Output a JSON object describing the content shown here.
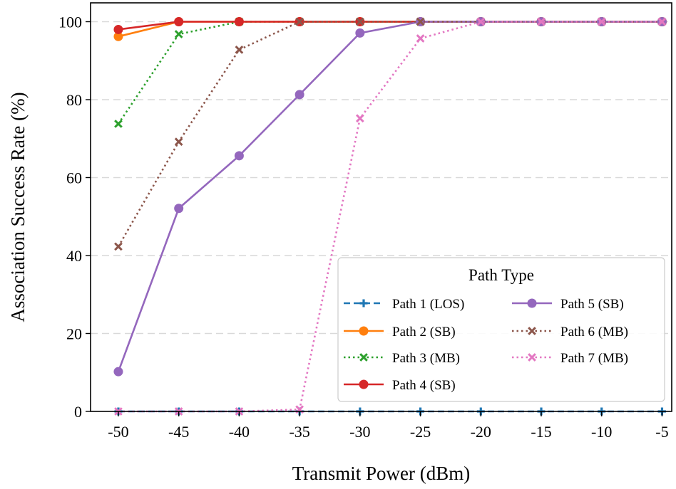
{
  "chart_data": {
    "type": "line",
    "xlabel": "Transmit Power (dBm)",
    "ylabel": "Association Success Rate (%)",
    "x": [
      -50,
      -45,
      -40,
      -35,
      -30,
      -25,
      -20,
      -15,
      -10,
      -5
    ],
    "x_tick_labels": [
      "-50",
      "-45",
      "-40",
      "-35",
      "-30",
      "-25",
      "-20",
      "-15",
      "-10",
      "-5"
    ],
    "xlim": [
      -52.3,
      -4.2
    ],
    "ylim": [
      0,
      100
    ],
    "y_ticks": [
      0,
      20,
      40,
      60,
      80,
      100
    ],
    "y_tick_labels": [
      "0",
      "20",
      "40",
      "60",
      "80",
      "100"
    ],
    "grid": "horizontal dashed",
    "legend": {
      "title": "Path Type",
      "placement": "lower-right",
      "columns": 2
    },
    "series": [
      {
        "name": "Path 1 (LOS)",
        "color": "#1f77b4",
        "linestyle": "dashed",
        "marker": "plus",
        "values": [
          0,
          0,
          0,
          0,
          0,
          0,
          0,
          0,
          0,
          0
        ]
      },
      {
        "name": "Path 2 (SB)",
        "color": "#ff7f0e",
        "linestyle": "solid",
        "marker": "circle",
        "values": [
          96.2,
          100,
          100,
          100,
          100,
          100,
          100,
          100,
          100,
          100
        ]
      },
      {
        "name": "Path 3 (MB)",
        "color": "#2ca02c",
        "linestyle": "dotted",
        "marker": "x",
        "values": [
          73.8,
          96.8,
          100,
          100,
          100,
          100,
          100,
          100,
          100,
          100
        ]
      },
      {
        "name": "Path 4 (SB)",
        "color": "#d62728",
        "linestyle": "solid",
        "marker": "circle",
        "values": [
          98.0,
          100,
          100,
          100,
          100,
          100,
          100,
          100,
          100,
          100
        ]
      },
      {
        "name": "Path 5 (SB)",
        "color": "#9467bd",
        "linestyle": "solid",
        "marker": "circle",
        "values": [
          10.2,
          52.1,
          65.6,
          81.3,
          97.1,
          100,
          100,
          100,
          100,
          100
        ]
      },
      {
        "name": "Path 6 (MB)",
        "color": "#8c564b",
        "linestyle": "dotted",
        "marker": "x",
        "values": [
          42.3,
          69.2,
          92.8,
          100,
          100,
          100,
          100,
          100,
          100,
          100
        ]
      },
      {
        "name": "Path 7 (MB)",
        "color": "#e377c2",
        "linestyle": "dotted",
        "marker": "x",
        "values": [
          0,
          0,
          0,
          0.5,
          75.2,
          95.7,
          100,
          100,
          100,
          100
        ]
      }
    ]
  }
}
